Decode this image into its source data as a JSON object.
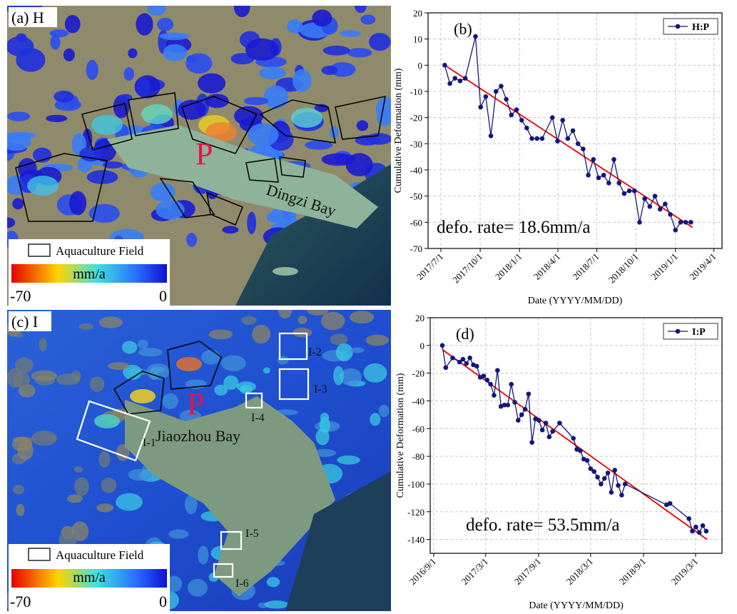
{
  "maps": [
    {
      "panel": "(a) H",
      "point": "P",
      "bay": "Dingzi Bay",
      "legend": {
        "outline": "Aquaculture Field",
        "unit": "mm/a",
        "min": -70,
        "max": 0
      }
    },
    {
      "panel": "(c) I",
      "point": "P",
      "bay": "Jiaozhou Bay",
      "regions": [
        "I-1",
        "I-2",
        "I-3",
        "I-4",
        "I-5",
        "I-6"
      ],
      "legend": {
        "outline": "Aquaculture Field",
        "unit": "mm/a",
        "min": -70,
        "max": 0
      }
    }
  ],
  "chart_data": [
    {
      "type": "line",
      "panel": "(b)",
      "annotation": "defo. rate= 18.6mm/a",
      "x_label": "Date (YYYY/MM/DD)",
      "y_label": "Cumulative Deformation (mm)",
      "x": [
        "2017/7/10",
        "2017/7/22",
        "2017/8/3",
        "2017/8/15",
        "2017/8/27",
        "2017/9/20",
        "2017/10/2",
        "2017/10/14",
        "2017/10/26",
        "2017/11/7",
        "2017/11/19",
        "2017/12/1",
        "2017/12/13",
        "2017/12/25",
        "2018/1/6",
        "2018/1/18",
        "2018/1/30",
        "2018/2/11",
        "2018/2/23",
        "2018/3/19",
        "2018/3/31",
        "2018/4/12",
        "2018/4/24",
        "2018/5/6",
        "2018/5/18",
        "2018/5/30",
        "2018/6/11",
        "2018/6/23",
        "2018/7/5",
        "2018/7/17",
        "2018/7/29",
        "2018/8/10",
        "2018/8/22",
        "2018/9/3",
        "2018/9/15",
        "2018/9/27",
        "2018/10/9",
        "2018/10/21",
        "2018/11/2",
        "2018/11/14",
        "2018/11/26",
        "2018/12/8",
        "2018/12/20",
        "2019/1/1",
        "2019/1/13",
        "2019/1/25",
        "2019/2/6"
      ],
      "series": [
        {
          "name": "H:P",
          "color": "#15157a",
          "values": [
            0,
            -7,
            -5,
            -6,
            -5,
            11,
            -16,
            -12,
            -27,
            -10,
            -8,
            -13,
            -19,
            -17,
            -21,
            -24,
            -28,
            -28,
            -28,
            -20,
            -29,
            -21,
            -28,
            -25,
            -30,
            -32,
            -42,
            -36,
            -43,
            -42,
            -45,
            -36,
            -45,
            -49,
            -48,
            -48,
            -60,
            -51,
            -54,
            -50,
            -55,
            -53,
            -57,
            -63,
            -60,
            -60,
            -60
          ]
        }
      ],
      "trend": {
        "color": "#e60000",
        "x": [
          "2017/7/10",
          "2019/2/10"
        ],
        "values": [
          0,
          -62
        ]
      },
      "xlim": [
        "2017/6/1",
        "2019/4/20"
      ],
      "xticks": [
        "2017/7/1",
        "2017/10/1",
        "2018/1/1",
        "2018/4/1",
        "2018/7/1",
        "2018/10/1",
        "2019/1/1",
        "2019/4/1"
      ],
      "ylim": [
        -70,
        20
      ],
      "yticks": [
        -70,
        -60,
        -50,
        -40,
        -30,
        -20,
        -10,
        0,
        10,
        20
      ],
      "grid": true,
      "legend": "upper right"
    },
    {
      "type": "line",
      "panel": "(d)",
      "annotation": "defo. rate= 53.5mm/a",
      "x_label": "Date (YYYY/MM/DD)",
      "y_label": "Cumulative Deformation (mm)",
      "x": [
        "2016/10/1",
        "2016/10/13",
        "2016/11/6",
        "2016/11/30",
        "2016/12/12",
        "2016/12/24",
        "2017/1/5",
        "2017/1/17",
        "2017/1/29",
        "2017/2/10",
        "2017/2/22",
        "2017/3/6",
        "2017/3/18",
        "2017/3/30",
        "2017/4/11",
        "2017/4/23",
        "2017/5/5",
        "2017/5/17",
        "2017/5/29",
        "2017/6/10",
        "2017/6/22",
        "2017/7/4",
        "2017/7/16",
        "2017/7/28",
        "2017/8/9",
        "2017/8/21",
        "2017/9/2",
        "2017/9/14",
        "2017/9/26",
        "2017/10/8",
        "2017/10/20",
        "2017/11/13",
        "2017/12/31",
        "2018/1/12",
        "2018/1/24",
        "2018/2/5",
        "2018/2/17",
        "2018/3/1",
        "2018/3/13",
        "2018/3/25",
        "2018/4/6",
        "2018/4/18",
        "2018/4/30",
        "2018/5/12",
        "2018/5/24",
        "2018/6/5",
        "2018/6/17",
        "2018/6/29",
        "2018/11/20",
        "2018/12/2",
        "2019/2/6",
        "2019/2/18",
        "2019/3/2",
        "2019/3/14",
        "2019/3/26",
        "2019/4/7"
      ],
      "series": [
        {
          "name": "I:P",
          "color": "#15157a",
          "values": [
            0,
            -16,
            -9,
            -12,
            -10,
            -13,
            -9,
            -14,
            -15,
            -23,
            -22,
            -25,
            -28,
            -36,
            -18,
            -44,
            -43,
            -43,
            -28,
            -41,
            -54,
            -50,
            -46,
            -35,
            -70,
            -53,
            -54,
            -61,
            -56,
            -66,
            -62,
            -56,
            -67,
            -75,
            -76,
            -82,
            -83,
            -89,
            -91,
            -95,
            -100,
            -96,
            -92,
            -106,
            -90,
            -101,
            -108,
            -100,
            -115,
            -114,
            -125,
            -134,
            -131,
            -135,
            -130,
            -134
          ]
        }
      ],
      "trend": {
        "color": "#e60000",
        "x": [
          "2016/10/1",
          "2019/4/10"
        ],
        "values": [
          -3,
          -140
        ]
      },
      "xlim": [
        "2016/8/20",
        "2019/6/1"
      ],
      "xticks": [
        "2016/9/1",
        "2017/3/1",
        "2017/9/1",
        "2018/3/1",
        "2018/9/1",
        "2019/3/1"
      ],
      "ylim": [
        -150,
        20
      ],
      "yticks": [
        -140,
        -120,
        -100,
        -80,
        -60,
        -40,
        -20,
        0,
        20
      ],
      "grid": true,
      "legend": "upper right"
    }
  ]
}
